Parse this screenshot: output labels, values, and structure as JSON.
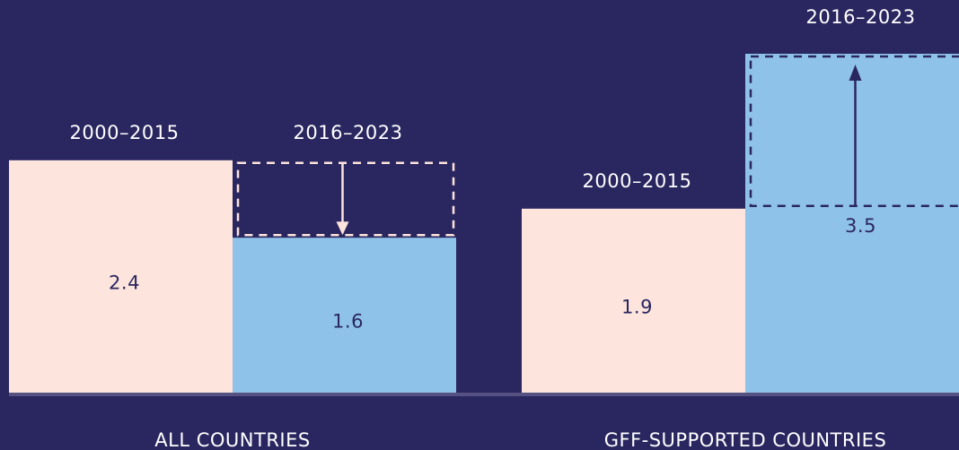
{
  "chart_data": {
    "type": "bar",
    "categories": [
      "ALL COUNTRIES",
      "GFF-SUPPORTED COUNTRIES"
    ],
    "series": [
      {
        "name": "2000–2015",
        "color": "#fde4dc",
        "values": [
          2.4,
          1.9
        ]
      },
      {
        "name": "2016–2023",
        "color": "#8fc2e8",
        "values": [
          1.6,
          3.5
        ]
      }
    ]
  }
}
